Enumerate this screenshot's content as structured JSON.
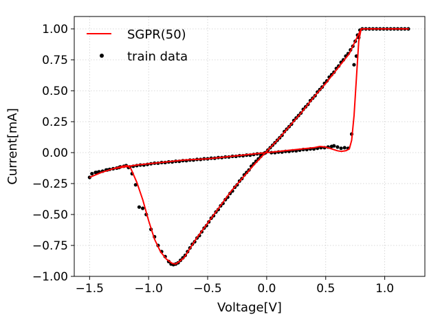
{
  "chart_data": {
    "type": "scatter",
    "title": "",
    "xlabel": "Voltage[V]",
    "ylabel": "Current[mA]",
    "xlim": [
      -1.63,
      1.34
    ],
    "ylim": [
      -1.0,
      1.1
    ],
    "xticks": [
      -1.5,
      -1.0,
      -0.5,
      0.0,
      0.5,
      1.0
    ],
    "xtick_labels": [
      "−1.5",
      "−1.0",
      "−0.5",
      "0.0",
      "0.5",
      "1.0"
    ],
    "yticks": [
      -1.0,
      -0.75,
      -0.5,
      -0.25,
      0.0,
      0.25,
      0.5,
      0.75,
      1.0
    ],
    "ytick_labels": [
      "−1.00",
      "−0.75",
      "−0.50",
      "−0.25",
      "0.00",
      "0.25",
      "0.50",
      "0.75",
      "1.00"
    ],
    "grid": true,
    "legend": {
      "position": "upper-left",
      "entries": [
        {
          "label": "SGPR(50)",
          "kind": "line",
          "color": "#ff0000"
        },
        {
          "label": "train data",
          "kind": "point",
          "color": "#000000"
        }
      ]
    },
    "series": [
      {
        "name": "SGPR(50)",
        "kind": "line",
        "color": "#ff0000",
        "points": [
          [
            -1.5,
            -0.2
          ],
          [
            -1.4,
            -0.16
          ],
          [
            -1.3,
            -0.13
          ],
          [
            -1.22,
            -0.11
          ],
          [
            -1.18,
            -0.105
          ],
          [
            -1.15,
            -0.13
          ],
          [
            -1.1,
            -0.24
          ],
          [
            -1.05,
            -0.38
          ],
          [
            -1.0,
            -0.55
          ],
          [
            -0.95,
            -0.7
          ],
          [
            -0.9,
            -0.8
          ],
          [
            -0.85,
            -0.86
          ],
          [
            -0.8,
            -0.895
          ],
          [
            -0.77,
            -0.9
          ],
          [
            -0.74,
            -0.88
          ],
          [
            -0.7,
            -0.85
          ],
          [
            -0.6,
            -0.7
          ],
          [
            -0.5,
            -0.57
          ],
          [
            -0.4,
            -0.44
          ],
          [
            -0.3,
            -0.31
          ],
          [
            -0.2,
            -0.2
          ],
          [
            -0.1,
            -0.09
          ],
          [
            0.0,
            0.01
          ],
          [
            0.1,
            0.11
          ],
          [
            0.2,
            0.22
          ],
          [
            0.3,
            0.33
          ],
          [
            0.4,
            0.45
          ],
          [
            0.5,
            0.56
          ],
          [
            0.6,
            0.68
          ],
          [
            0.7,
            0.8
          ],
          [
            0.8,
            1.0
          ],
          [
            0.9,
            1.0
          ],
          [
            1.0,
            1.0
          ],
          [
            1.1,
            1.0
          ],
          [
            1.2,
            1.0
          ],
          [
            1.0,
            1.0
          ],
          [
            0.8,
            1.0
          ],
          [
            0.78,
            0.9
          ],
          [
            0.76,
            0.6
          ],
          [
            0.74,
            0.3
          ],
          [
            0.72,
            0.1
          ],
          [
            0.7,
            0.03
          ],
          [
            0.67,
            0.015
          ],
          [
            0.63,
            0.01
          ],
          [
            0.6,
            0.015
          ],
          [
            0.55,
            0.03
          ],
          [
            0.5,
            0.045
          ],
          [
            0.45,
            0.05
          ],
          [
            0.4,
            0.04
          ],
          [
            0.3,
            0.03
          ],
          [
            0.2,
            0.02
          ],
          [
            0.1,
            0.01
          ],
          [
            0.0,
            0.0
          ],
          [
            -0.1,
            -0.01
          ],
          [
            -0.3,
            -0.03
          ],
          [
            -0.5,
            -0.05
          ],
          [
            -0.7,
            -0.06
          ],
          [
            -0.9,
            -0.08
          ],
          [
            -1.1,
            -0.1
          ],
          [
            -1.3,
            -0.13
          ],
          [
            -1.4,
            -0.16
          ],
          [
            -1.5,
            -0.2
          ]
        ]
      },
      {
        "name": "train data",
        "kind": "scatter",
        "color": "#000000",
        "points": [
          [
            -1.5,
            -0.2
          ],
          [
            -1.48,
            -0.17
          ],
          [
            -1.45,
            -0.16
          ],
          [
            -1.42,
            -0.155
          ],
          [
            -1.39,
            -0.15
          ],
          [
            -1.36,
            -0.14
          ],
          [
            -1.33,
            -0.135
          ],
          [
            -1.3,
            -0.13
          ],
          [
            -1.27,
            -0.125
          ],
          [
            -1.24,
            -0.115
          ],
          [
            -1.21,
            -0.11
          ],
          [
            -1.19,
            -0.105
          ],
          [
            -1.17,
            -0.12
          ],
          [
            -1.14,
            -0.17
          ],
          [
            -1.11,
            -0.26
          ],
          [
            -1.08,
            -0.44
          ],
          [
            -1.05,
            -0.45
          ],
          [
            -1.02,
            -0.5
          ],
          [
            -0.98,
            -0.62
          ],
          [
            -0.95,
            -0.68
          ],
          [
            -0.92,
            -0.75
          ],
          [
            -0.89,
            -0.8
          ],
          [
            -0.86,
            -0.84
          ],
          [
            -0.83,
            -0.88
          ],
          [
            -0.81,
            -0.9
          ],
          [
            -0.79,
            -0.905
          ],
          [
            -0.77,
            -0.9
          ],
          [
            -0.75,
            -0.89
          ],
          [
            -0.73,
            -0.87
          ],
          [
            -0.71,
            -0.85
          ],
          [
            -0.69,
            -0.83
          ],
          [
            -0.67,
            -0.8
          ],
          [
            -0.65,
            -0.77
          ],
          [
            -0.63,
            -0.74
          ],
          [
            -0.61,
            -0.72
          ],
          [
            -0.59,
            -0.69
          ],
          [
            -0.57,
            -0.67
          ],
          [
            -0.55,
            -0.64
          ],
          [
            -0.53,
            -0.61
          ],
          [
            -0.51,
            -0.59
          ],
          [
            -0.49,
            -0.56
          ],
          [
            -0.47,
            -0.53
          ],
          [
            -0.45,
            -0.51
          ],
          [
            -0.43,
            -0.48
          ],
          [
            -0.41,
            -0.46
          ],
          [
            -0.39,
            -0.43
          ],
          [
            -0.37,
            -0.41
          ],
          [
            -0.35,
            -0.38
          ],
          [
            -0.33,
            -0.36
          ],
          [
            -0.31,
            -0.33
          ],
          [
            -0.29,
            -0.31
          ],
          [
            -0.27,
            -0.28
          ],
          [
            -0.25,
            -0.26
          ],
          [
            -0.23,
            -0.23
          ],
          [
            -0.21,
            -0.21
          ],
          [
            -0.19,
            -0.18
          ],
          [
            -0.17,
            -0.16
          ],
          [
            -0.15,
            -0.14
          ],
          [
            -0.13,
            -0.11
          ],
          [
            -0.11,
            -0.09
          ],
          [
            -0.09,
            -0.07
          ],
          [
            -0.07,
            -0.05
          ],
          [
            -0.05,
            -0.03
          ],
          [
            -0.03,
            -0.01
          ],
          [
            -0.01,
            0.0
          ],
          [
            0.01,
            0.02
          ],
          [
            0.03,
            0.04
          ],
          [
            0.05,
            0.06
          ],
          [
            0.07,
            0.08
          ],
          [
            0.09,
            0.1
          ],
          [
            0.11,
            0.12
          ],
          [
            0.13,
            0.14
          ],
          [
            0.15,
            0.17
          ],
          [
            0.17,
            0.19
          ],
          [
            0.19,
            0.21
          ],
          [
            0.21,
            0.23
          ],
          [
            0.23,
            0.26
          ],
          [
            0.25,
            0.28
          ],
          [
            0.27,
            0.3
          ],
          [
            0.29,
            0.32
          ],
          [
            0.31,
            0.35
          ],
          [
            0.33,
            0.37
          ],
          [
            0.35,
            0.39
          ],
          [
            0.37,
            0.42
          ],
          [
            0.39,
            0.44
          ],
          [
            0.41,
            0.46
          ],
          [
            0.43,
            0.49
          ],
          [
            0.45,
            0.51
          ],
          [
            0.47,
            0.53
          ],
          [
            0.49,
            0.56
          ],
          [
            0.51,
            0.58
          ],
          [
            0.53,
            0.61
          ],
          [
            0.55,
            0.63
          ],
          [
            0.57,
            0.65
          ],
          [
            0.59,
            0.68
          ],
          [
            0.61,
            0.7
          ],
          [
            0.63,
            0.73
          ],
          [
            0.65,
            0.75
          ],
          [
            0.67,
            0.78
          ],
          [
            0.69,
            0.8
          ],
          [
            0.71,
            0.83
          ],
          [
            0.73,
            0.86
          ],
          [
            0.75,
            0.9
          ],
          [
            0.77,
            0.95
          ],
          [
            0.79,
            0.99
          ],
          [
            0.81,
            1.0
          ],
          [
            0.84,
            1.0
          ],
          [
            0.87,
            1.0
          ],
          [
            0.9,
            1.0
          ],
          [
            0.93,
            1.0
          ],
          [
            0.96,
            1.0
          ],
          [
            0.99,
            1.0
          ],
          [
            1.02,
            1.0
          ],
          [
            1.05,
            1.0
          ],
          [
            1.08,
            1.0
          ],
          [
            1.11,
            1.0
          ],
          [
            1.14,
            1.0
          ],
          [
            1.17,
            1.0
          ],
          [
            1.2,
            1.0
          ],
          [
            0.78,
            0.93
          ],
          [
            0.76,
            0.78
          ],
          [
            0.74,
            0.71
          ],
          [
            0.72,
            0.15
          ],
          [
            0.69,
            0.035
          ],
          [
            0.66,
            0.04
          ],
          [
            0.63,
            0.035
          ],
          [
            0.6,
            0.045
          ],
          [
            0.57,
            0.055
          ],
          [
            0.55,
            0.05
          ],
          [
            0.52,
            0.045
          ],
          [
            0.49,
            0.04
          ],
          [
            0.46,
            0.04
          ],
          [
            0.43,
            0.035
          ],
          [
            0.4,
            0.03
          ],
          [
            0.37,
            0.03
          ],
          [
            0.34,
            0.025
          ],
          [
            0.31,
            0.025
          ],
          [
            0.28,
            0.02
          ],
          [
            0.25,
            0.015
          ],
          [
            0.22,
            0.015
          ],
          [
            0.19,
            0.01
          ],
          [
            0.16,
            0.01
          ],
          [
            0.13,
            0.005
          ],
          [
            0.1,
            0.005
          ],
          [
            0.07,
            0.0
          ],
          [
            0.04,
            0.0
          ],
          [
            -0.02,
            -0.005
          ],
          [
            -0.05,
            -0.01
          ],
          [
            -0.08,
            -0.01
          ],
          [
            -0.11,
            -0.015
          ],
          [
            -0.14,
            -0.02
          ],
          [
            -0.17,
            -0.02
          ],
          [
            -0.2,
            -0.025
          ],
          [
            -0.23,
            -0.025
          ],
          [
            -0.26,
            -0.03
          ],
          [
            -0.29,
            -0.03
          ],
          [
            -0.32,
            -0.035
          ],
          [
            -0.35,
            -0.035
          ],
          [
            -0.38,
            -0.04
          ],
          [
            -0.41,
            -0.04
          ],
          [
            -0.44,
            -0.045
          ],
          [
            -0.47,
            -0.045
          ],
          [
            -0.5,
            -0.05
          ],
          [
            -0.53,
            -0.05
          ],
          [
            -0.56,
            -0.055
          ],
          [
            -0.59,
            -0.055
          ],
          [
            -0.62,
            -0.06
          ],
          [
            -0.65,
            -0.06
          ],
          [
            -0.68,
            -0.065
          ],
          [
            -0.71,
            -0.065
          ],
          [
            -0.74,
            -0.07
          ],
          [
            -0.77,
            -0.07
          ],
          [
            -0.8,
            -0.075
          ],
          [
            -0.83,
            -0.075
          ],
          [
            -0.86,
            -0.08
          ],
          [
            -0.89,
            -0.08
          ],
          [
            -0.92,
            -0.085
          ],
          [
            -0.95,
            -0.085
          ],
          [
            -0.98,
            -0.09
          ],
          [
            -1.01,
            -0.095
          ],
          [
            -1.04,
            -0.1
          ],
          [
            -1.07,
            -0.1
          ],
          [
            -1.1,
            -0.105
          ],
          [
            -1.13,
            -0.11
          ],
          [
            -1.16,
            -0.115
          ],
          [
            -1.25,
            -0.12
          ],
          [
            -1.35,
            -0.14
          ],
          [
            -1.44,
            -0.16
          ]
        ]
      }
    ]
  }
}
